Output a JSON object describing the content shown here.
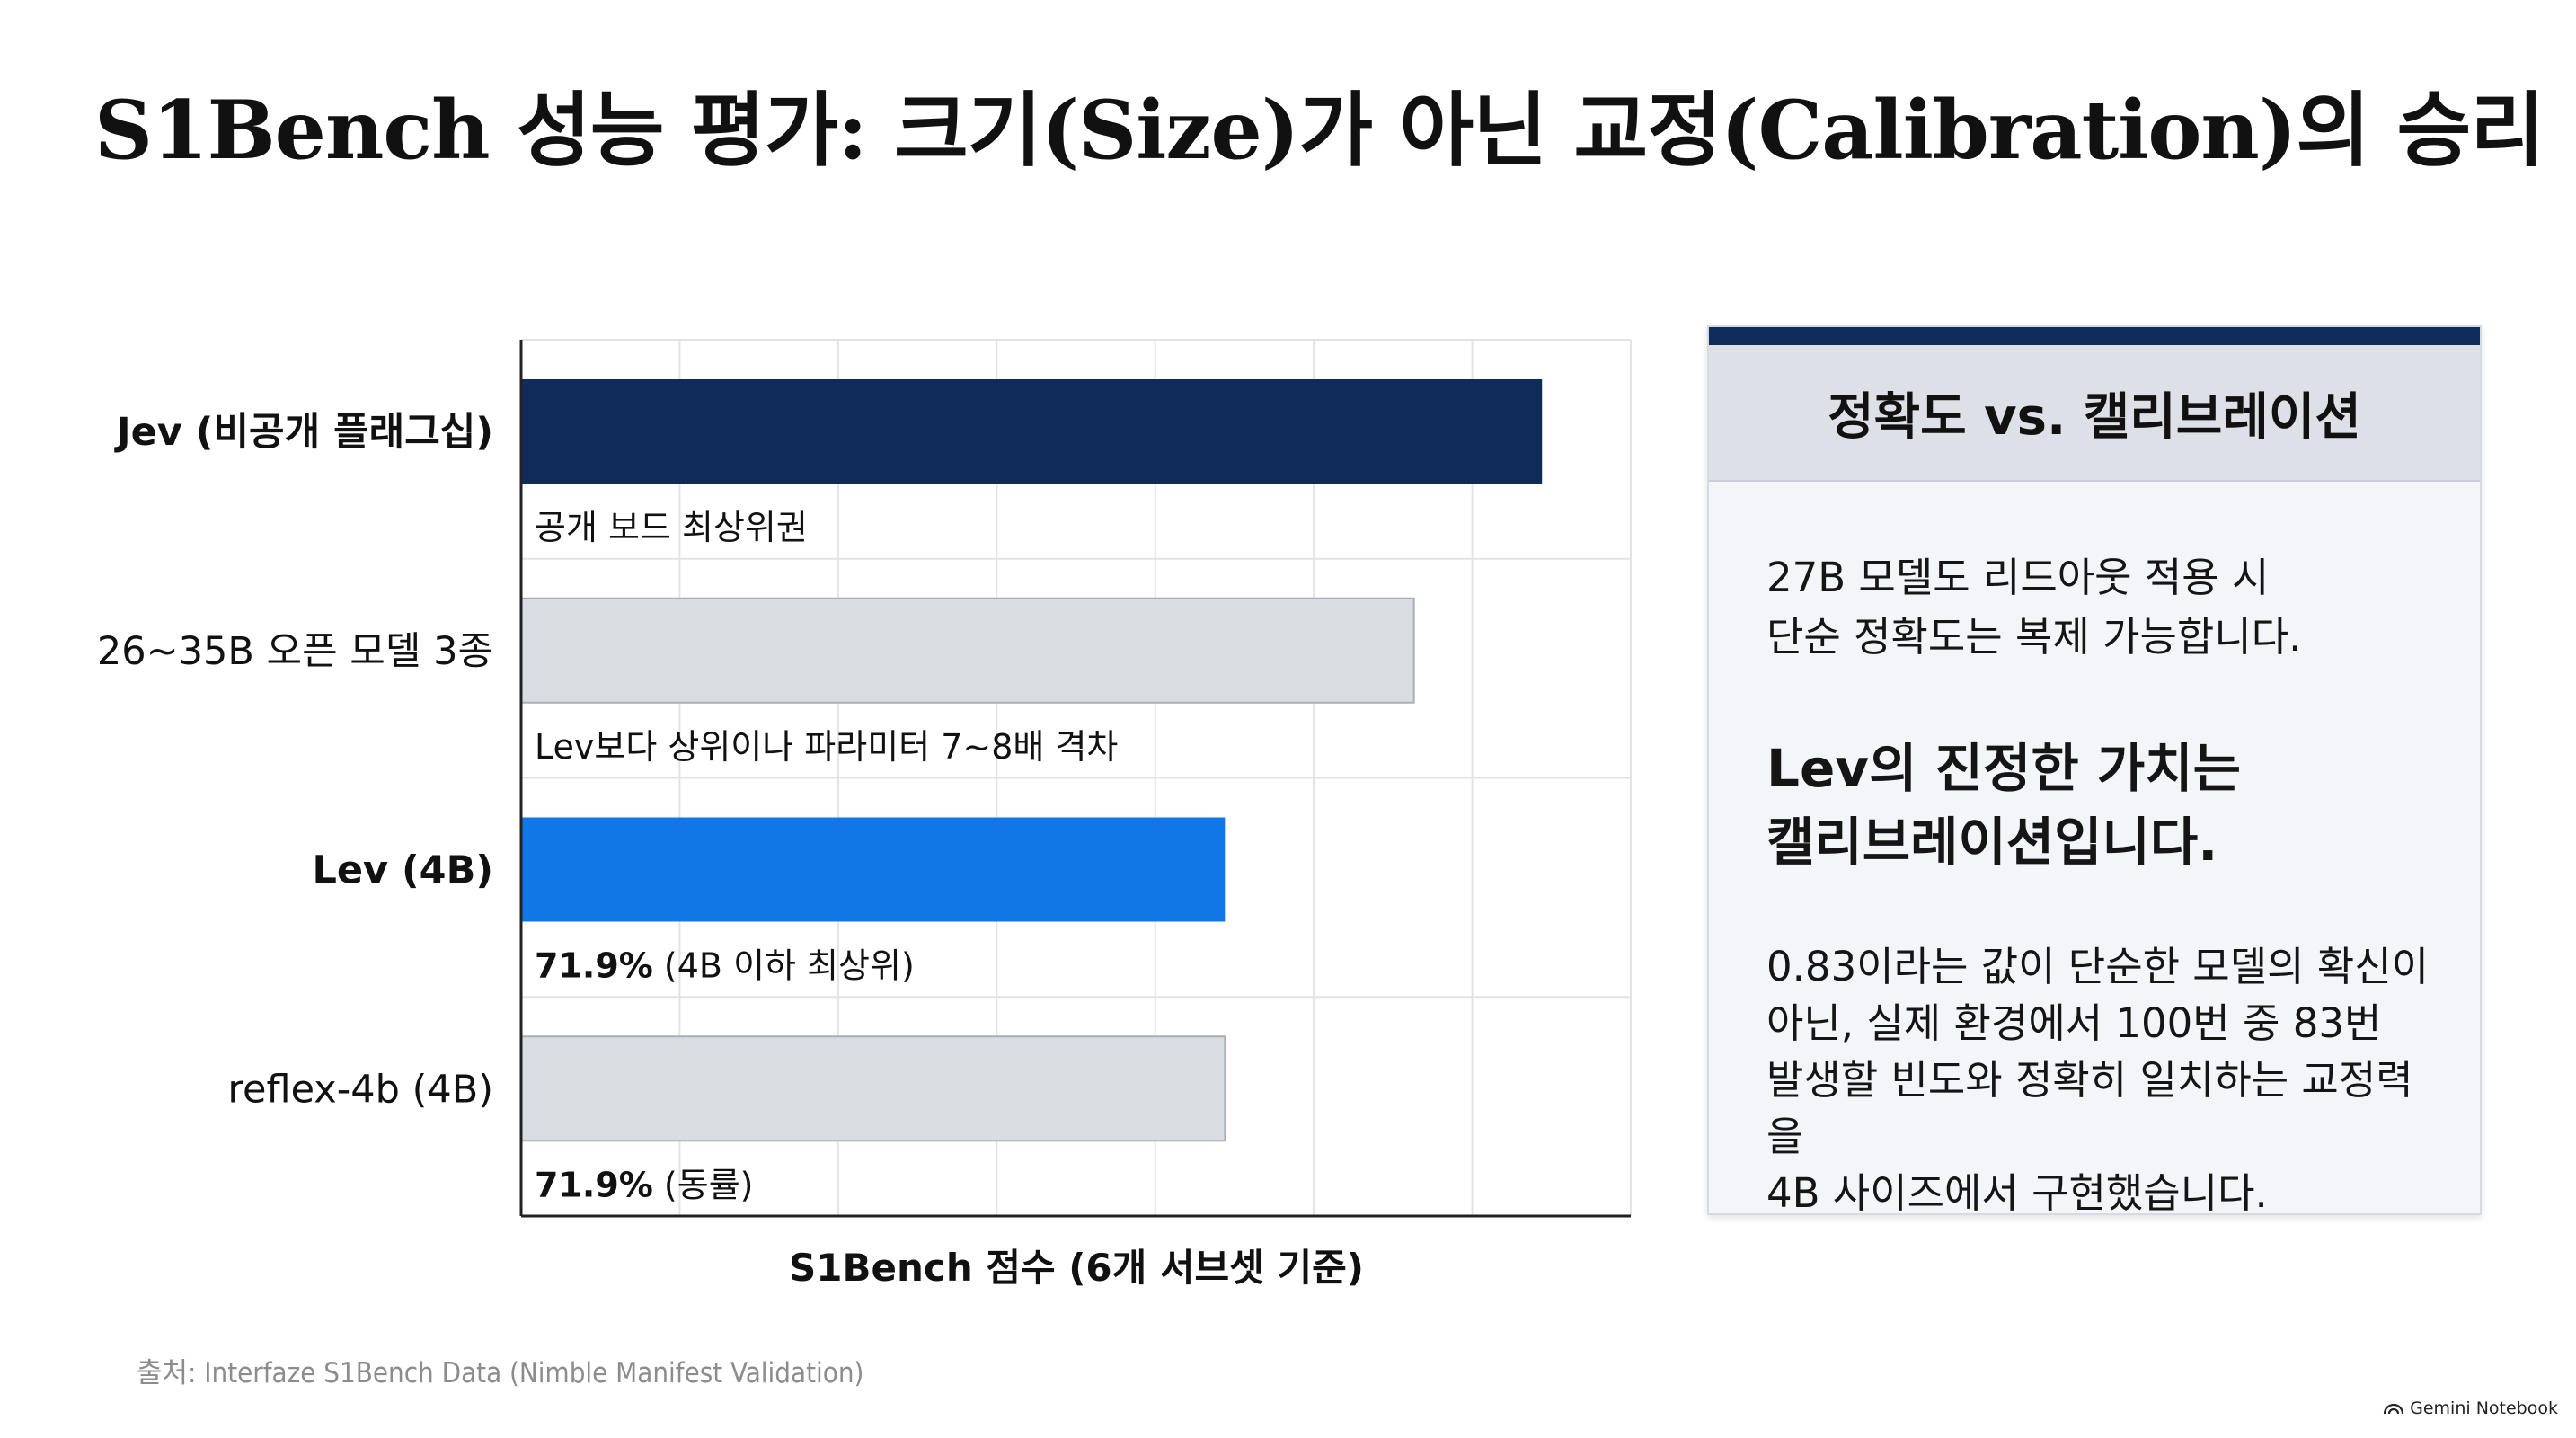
{
  "title": "S1Bench 성능 평가: 크기(Size)가 아닌 교정(Calibration)의 승리",
  "chart_data": {
    "type": "bar",
    "orientation": "horizontal",
    "categories": [
      "Jev (비공개 플래그십)",
      "26~35B 오픈 모델 3종",
      "Lev (4B)",
      "reflex-4b (4B)"
    ],
    "bold_categories": [
      true,
      false,
      true,
      false
    ],
    "values": [
      80.5,
      70.4,
      55.5,
      55.5
    ],
    "annotations": [
      {
        "value": "",
        "text": "공개 보드 최상위권"
      },
      {
        "value": "",
        "text": "Lev보다 상위이나 파라미터 7~8배 격차"
      },
      {
        "value": "71.9%",
        "text": " (4B 이하 최상위)"
      },
      {
        "value": "71.9%",
        "text": " (동률)"
      }
    ],
    "colors": [
      "#0f2b59",
      "#d9dde2",
      "#1277e6",
      "#d9dde2"
    ],
    "xlabel": "S1Bench 점수 (6개 서브셋 기준)",
    "ylabel": "",
    "xlim": [
      0,
      87.5
    ],
    "grid": true,
    "legend": "none"
  },
  "panel": {
    "heading": "정확도 vs. 캘리브레이션",
    "p1_line1": "27B 모델도 리드아웃 적용 시",
    "p1_line2": "단순 정확도는 복제 가능합니다.",
    "p2_line1": "Lev의 진정한 가치는",
    "p2_line2": "캘리브레이션입니다.",
    "p3_line1": "0.83이라는 값이 단순한 모델의 확신이",
    "p3_line2": "아닌, 실제 환경에서 100번 중 83번",
    "p3_line3": "발생할 빈도와 정확히 일치하는 교정력을",
    "p3_line4": "4B 사이즈에서 구현했습니다.",
    "accent_color": "#0f2b59"
  },
  "source": "출처: Interfaze S1Bench Data (Nimble Manifest Validation)",
  "brand": {
    "text": "Gemini Notebook",
    "icon": "notebook-logo-icon"
  }
}
